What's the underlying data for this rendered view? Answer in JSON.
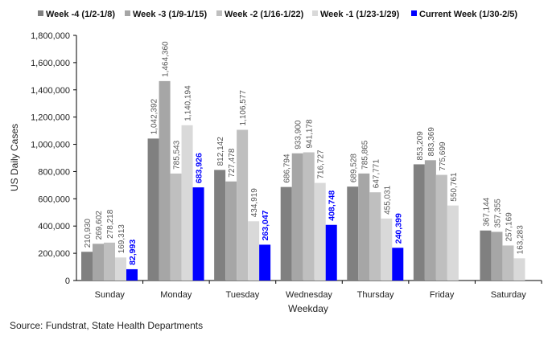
{
  "chart_data": {
    "type": "bar",
    "xlabel": "Weekday",
    "ylabel": "US Daily Cases",
    "ylim": [
      0,
      1800000
    ],
    "yticks": [
      0,
      200000,
      400000,
      600000,
      800000,
      1000000,
      1200000,
      1400000,
      1600000,
      1800000
    ],
    "ytick_labels": [
      "0",
      "200,000",
      "400,000",
      "600,000",
      "800,000",
      "1,000,000",
      "1,200,000",
      "1,400,000",
      "1,600,000",
      "1,800,000"
    ],
    "categories": [
      "Sunday",
      "Monday",
      "Tuesday",
      "Wednesday",
      "Thursday",
      "Friday",
      "Saturday"
    ],
    "legend_position": "top",
    "series": [
      {
        "name": "Week -4 (1/2-1/8)",
        "color": "#808080",
        "values": [
          210930,
          1042392,
          812142,
          686794,
          689528,
          853209,
          367144
        ],
        "labels": [
          "210,930",
          "1,042,392",
          "812,142",
          "686,794",
          "689,528",
          "853,209",
          "367,144"
        ]
      },
      {
        "name": "Week -3 (1/9-1/15)",
        "color": "#a6a6a6",
        "values": [
          269602,
          1464360,
          727478,
          933900,
          785865,
          883369,
          357355
        ],
        "labels": [
          "269,602",
          "1,464,360",
          "727,478",
          "933,900",
          "785,865",
          "883,369",
          "357,355"
        ]
      },
      {
        "name": "Week -2 (1/16-1/22)",
        "color": "#bfbfbf",
        "values": [
          278218,
          785543,
          1106577,
          941178,
          647771,
          775699,
          257169
        ],
        "labels": [
          "278,218",
          "785,543",
          "1,106,577",
          "941,178",
          "647,771",
          "775,699",
          "257,169"
        ]
      },
      {
        "name": "Week -1 (1/23-1/29)",
        "color": "#d9d9d9",
        "values": [
          169313,
          1140194,
          434919,
          716727,
          455031,
          550761,
          163283
        ],
        "labels": [
          "169,313",
          "1,140,194",
          "434,919",
          "716,727",
          "455,031",
          "550,761",
          "163,283"
        ]
      },
      {
        "name": "Current Week (1/30-2/5)",
        "color": "#0000ff",
        "values": [
          82993,
          683926,
          263047,
          408748,
          240399,
          null,
          null
        ],
        "labels": [
          "82,993",
          "683,926",
          "263,047",
          "408,748",
          "240,399",
          null,
          null
        ]
      }
    ]
  },
  "source": "Source: Fundstrat, State Health Departments"
}
